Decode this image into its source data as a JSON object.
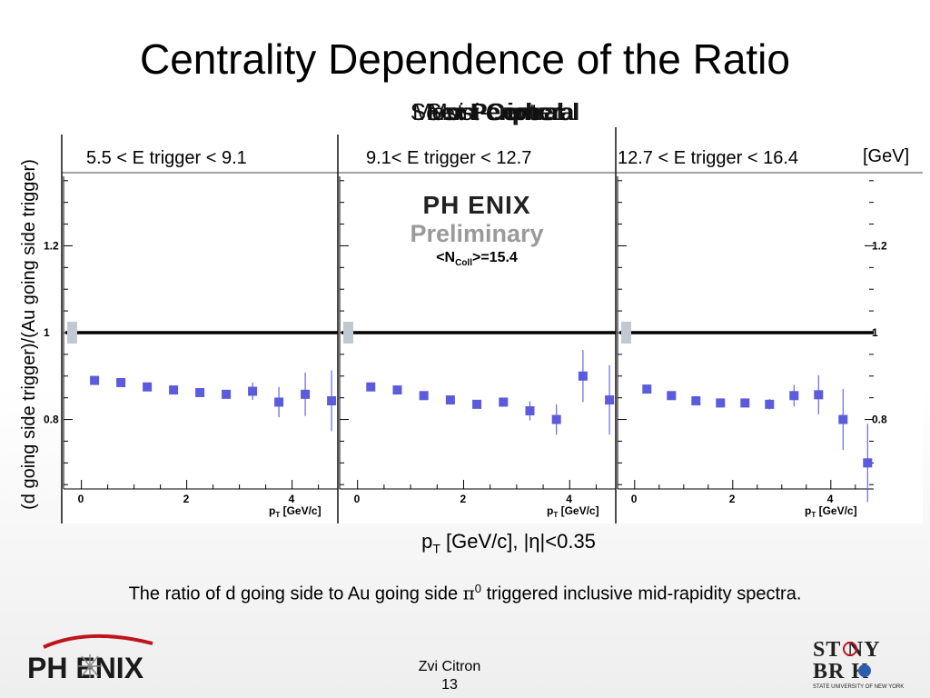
{
  "slide": {
    "title": "Centrality Dependence of the Ratio",
    "overlapping_labels": [
      "Most Central",
      "Semi-Central",
      "Semi-Peripheral",
      "Most Peripheral"
    ],
    "y_axis_label": "(d going side trigger)/(Au going side trigger)",
    "x_axis_label": {
      "p": "p",
      "sub": "T",
      "rest": " [GeV/c], |η|<0.35"
    },
    "caption": {
      "before": "The ratio of d going side to Au going side ",
      "pi": "π",
      "sup": "0",
      "after": " triggered inclusive mid-rapidity spectra."
    },
    "author": "Zvi Citron",
    "page_number": "13",
    "units_label": "[GeV]",
    "preliminary": {
      "brand": "PH  ENIX",
      "word": "Preliminary",
      "ncoll_prefix": "<N",
      "ncoll_sub": "Coll",
      "ncoll_suffix": ">=15.4"
    },
    "logo_left_text": "PH  ENIX",
    "logo_right": {
      "line1": "ST  NY",
      "line2": "BR  K",
      "line3": "STATE UNIVERSITY OF NEW YORK"
    },
    "colors": {
      "marker": "#5b5bdc",
      "error_bar": "#6666e0",
      "ref_band": "#c0c8d2",
      "preliminary_gray": "#9a9a9a",
      "logo_red": "#c0141c"
    }
  },
  "chart_data": {
    "type": "scatter",
    "ylim": [
      0.64,
      1.36
    ],
    "xlim": [
      -0.2,
      4.8
    ],
    "yticks": [
      0.8,
      1,
      1.2
    ],
    "ytick_labels": [
      "0.8",
      "1",
      "1.2"
    ],
    "xticks": [
      0,
      2,
      4
    ],
    "xtick_labels": [
      "0",
      "2",
      "4"
    ],
    "panel_xlabel": {
      "p": "p",
      "sub": "T",
      "rest": " [GeV/c]"
    },
    "reference_line": 1.0,
    "panels": [
      {
        "name": "5.5 < E trigger < 9.1",
        "x": [
          0.25,
          0.75,
          1.25,
          1.75,
          2.25,
          2.75,
          3.25,
          3.75,
          4.25,
          4.75
        ],
        "y": [
          0.89,
          0.885,
          0.875,
          0.868,
          0.862,
          0.858,
          0.865,
          0.84,
          0.858,
          0.843
        ],
        "err": [
          0.006,
          0.006,
          0.006,
          0.007,
          0.008,
          0.009,
          0.02,
          0.035,
          0.05,
          0.07
        ]
      },
      {
        "name": "9.1< E trigger < 12.7",
        "x": [
          0.25,
          0.75,
          1.25,
          1.75,
          2.25,
          2.75,
          3.25,
          3.75,
          4.25,
          4.75
        ],
        "y": [
          0.875,
          0.868,
          0.855,
          0.845,
          0.835,
          0.84,
          0.82,
          0.8,
          0.9,
          0.845
        ],
        "err": [
          0.006,
          0.006,
          0.006,
          0.007,
          0.008,
          0.01,
          0.022,
          0.035,
          0.06,
          0.08
        ]
      },
      {
        "name": "12.7 < E trigger < 16.4",
        "x": [
          0.25,
          0.75,
          1.25,
          1.75,
          2.25,
          2.75,
          3.25,
          3.75,
          4.25,
          4.75
        ],
        "y": [
          0.87,
          0.855,
          0.843,
          0.838,
          0.838,
          0.835,
          0.855,
          0.857,
          0.8,
          0.7
        ],
        "err": [
          0.006,
          0.006,
          0.006,
          0.007,
          0.009,
          0.012,
          0.025,
          0.045,
          0.07,
          0.09
        ]
      }
    ]
  }
}
